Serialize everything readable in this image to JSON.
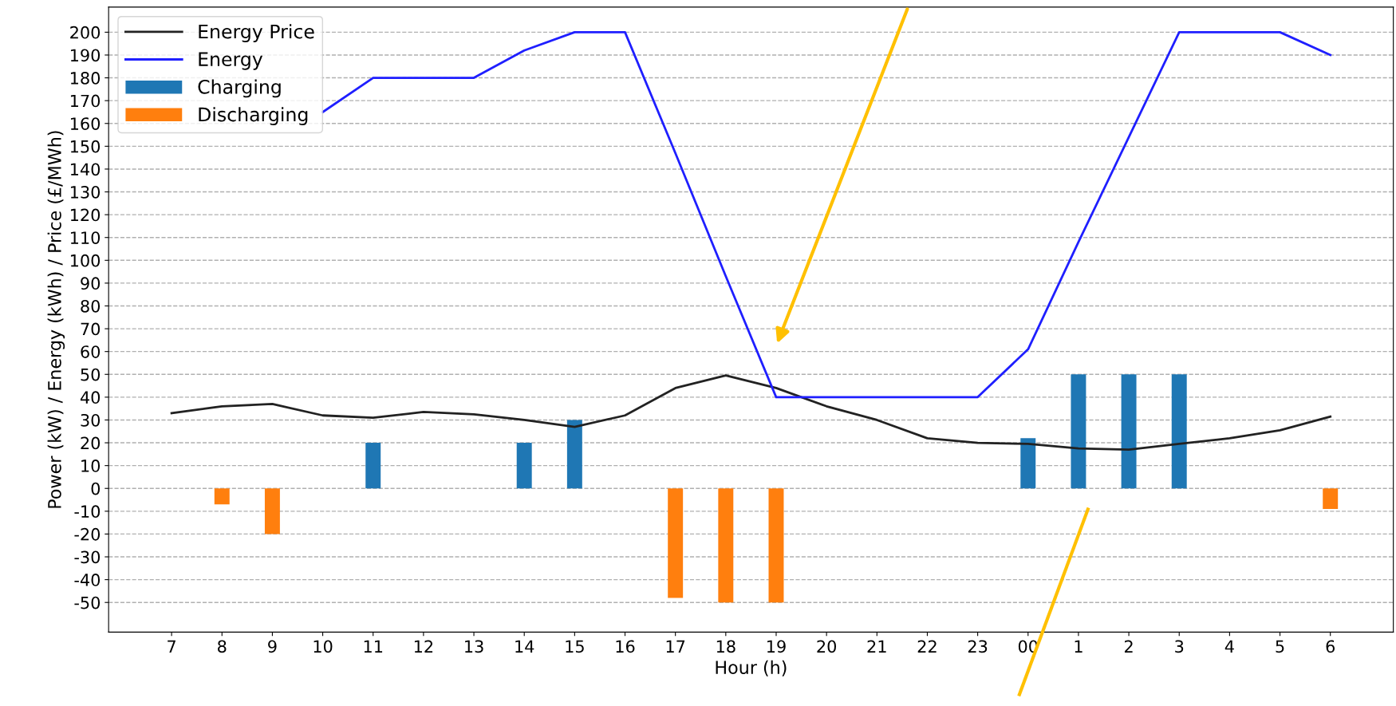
{
  "chart_data": {
    "type": "bar",
    "xlabel": "Hour (h)",
    "ylabel": "Power (kW) / Energy (kWh) / Price (£/MWh)",
    "categories": [
      "7",
      "8",
      "9",
      "10",
      "11",
      "12",
      "13",
      "14",
      "15",
      "16",
      "17",
      "18",
      "19",
      "20",
      "21",
      "22",
      "23",
      "00",
      "1",
      "2",
      "3",
      "4",
      "5",
      "6"
    ],
    "series": [
      {
        "name": "Energy Price",
        "type": "line",
        "color": "#222222",
        "values": [
          33,
          36,
          37,
          32,
          31,
          33.5,
          32.5,
          30,
          27,
          32,
          44,
          49.5,
          44,
          36,
          30,
          22,
          20,
          19.5,
          17.5,
          17,
          19.5,
          22,
          25.5,
          31.5
        ]
      },
      {
        "name": "Energy",
        "type": "line",
        "color": "#1f1fff",
        "values": [
          null,
          null,
          null,
          165,
          180,
          180,
          180,
          192,
          200,
          200,
          147,
          93,
          40,
          40,
          40,
          40,
          40,
          61,
          108,
          154,
          200,
          200,
          200,
          190
        ]
      },
      {
        "name": "Charging",
        "color": "#1f77b4",
        "values": [
          null,
          null,
          null,
          null,
          20,
          null,
          null,
          20,
          30,
          null,
          null,
          null,
          null,
          null,
          null,
          null,
          null,
          22,
          50,
          50,
          50,
          null,
          null,
          null
        ]
      },
      {
        "name": "Discharging",
        "color": "#ff7f0e",
        "values": [
          null,
          -7,
          -20,
          null,
          null,
          null,
          null,
          null,
          null,
          null,
          -48,
          -50,
          -50,
          null,
          null,
          null,
          null,
          null,
          null,
          null,
          null,
          null,
          null,
          -9
        ]
      }
    ],
    "ylim": [
      -63,
      211
    ],
    "yticks": [
      -50,
      -40,
      -30,
      -20,
      -10,
      0,
      10,
      20,
      30,
      40,
      50,
      60,
      70,
      80,
      90,
      100,
      110,
      120,
      130,
      140,
      150,
      160,
      170,
      180,
      190,
      200
    ],
    "grid": "y",
    "legend": "top left",
    "line_style": "solid",
    "marker": "none"
  }
}
